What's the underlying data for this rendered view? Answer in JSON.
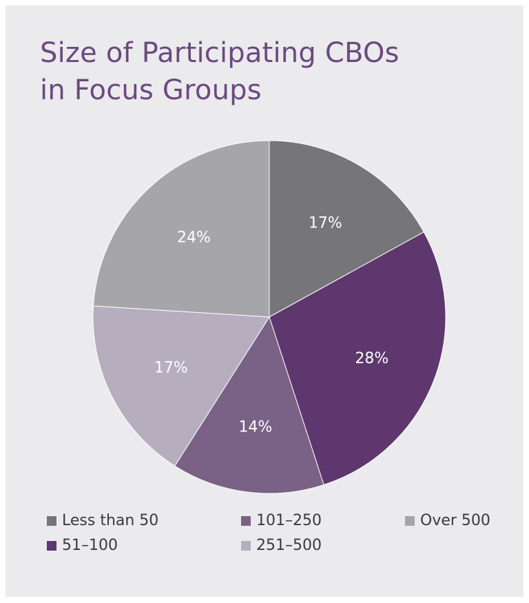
{
  "chart_data": {
    "type": "pie",
    "title_lines": [
      "Size of Participating CBOs",
      "in Focus Groups"
    ],
    "categories": [
      "Less than 50",
      "51–100",
      "101–250",
      "251–500",
      "Over 500"
    ],
    "values": [
      17,
      28,
      14,
      17,
      24
    ],
    "labels": [
      "17%",
      "28%",
      "14%",
      "17%",
      "24%"
    ],
    "colors": [
      "#76767a",
      "#5e376e",
      "#7a6286",
      "#b6adbf",
      "#a6a5a9"
    ],
    "start_angle_deg": 0,
    "direction": "clockwise",
    "legend_position": "bottom",
    "legend_order": [
      "Less than 50",
      "101–250",
      "Over 500",
      "51–100",
      "251–500"
    ]
  }
}
